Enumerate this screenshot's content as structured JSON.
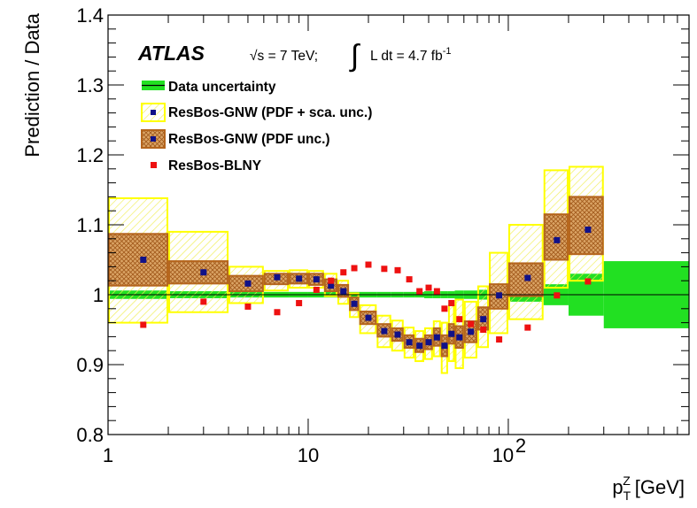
{
  "chart_data": {
    "type": "scatter",
    "experiment_label": "ATLAS",
    "energy_label": "√s = 7 TeV;",
    "lumi_label": "L dt = 4.7 fb",
    "lumi_exponent": "-1",
    "ylabel": "Prediction / Data",
    "xlabel_main": "p",
    "xlabel_sub": "T",
    "xlabel_sup": "Z",
    "xlabel_unit": "[GeV]",
    "xscale": "log",
    "xlim": [
      1,
      800
    ],
    "ylim": [
      0.8,
      1.4
    ],
    "x_tick_labels": [
      {
        "value": 1,
        "label": "1"
      },
      {
        "value": 10,
        "label": "10"
      },
      {
        "value": 100,
        "label": "10",
        "exp": "2"
      }
    ],
    "y_tick_labels": [
      {
        "value": 0.8,
        "label": "0.8"
      },
      {
        "value": 0.9,
        "label": "0.9"
      },
      {
        "value": 1.0,
        "label": "1"
      },
      {
        "value": 1.1,
        "label": "1.1"
      },
      {
        "value": 1.2,
        "label": "1.2"
      },
      {
        "value": 1.3,
        "label": "1.3"
      },
      {
        "value": 1.4,
        "label": "1.4"
      }
    ],
    "reference_line": 1.0,
    "legend_position": "top-left",
    "legend": [
      {
        "key": "data",
        "label": "Data uncertainty"
      },
      {
        "key": "gnw_full",
        "label": "ResBos-GNW (PDF + sca. unc.)"
      },
      {
        "key": "gnw_pdf",
        "label": "ResBos-GNW (PDF unc.)"
      },
      {
        "key": "blny",
        "label": "ResBos-BLNY"
      }
    ],
    "colors": {
      "data_band": "#22e022",
      "gnw_full_edge": "#ffff00",
      "gnw_full_hatch": "#f3f36a",
      "gnw_pdf_edge": "#b5651d",
      "gnw_pdf_fill": "#d9a05b",
      "gnw_marker": "#111188",
      "blny_marker": "#ee1111"
    },
    "bins": [
      {
        "lo": 1,
        "hi": 2,
        "center": 1.5,
        "data_unc": 0.006,
        "gnw": 1.05,
        "gnw_full": [
          0.96,
          1.138
        ],
        "gnw_pdf": [
          1.013,
          1.087
        ],
        "blny": 0.957
      },
      {
        "lo": 2,
        "hi": 4,
        "center": 3,
        "data_unc": 0.005,
        "gnw": 1.032,
        "gnw_full": [
          0.975,
          1.09
        ],
        "gnw_pdf": [
          1.016,
          1.048
        ],
        "blny": 0.99
      },
      {
        "lo": 4,
        "hi": 6,
        "center": 5,
        "data_unc": 0.004,
        "gnw": 1.016,
        "gnw_full": [
          0.988,
          1.04
        ],
        "gnw_pdf": [
          1.005,
          1.027
        ],
        "blny": 0.983
      },
      {
        "lo": 6,
        "hi": 8,
        "center": 7,
        "data_unc": 0.004,
        "gnw": 1.025,
        "gnw_full": [
          1.006,
          1.034
        ],
        "gnw_pdf": [
          1.015,
          1.03
        ],
        "blny": 0.975
      },
      {
        "lo": 8,
        "hi": 10,
        "center": 9,
        "data_unc": 0.004,
        "gnw": 1.023,
        "gnw_full": [
          1.01,
          1.035
        ],
        "gnw_pdf": [
          1.016,
          1.03
        ],
        "blny": 0.988
      },
      {
        "lo": 10,
        "hi": 12,
        "center": 11,
        "data_unc": 0.004,
        "gnw": 1.022,
        "gnw_full": [
          1.01,
          1.034
        ],
        "gnw_pdf": [
          1.014,
          1.03
        ],
        "blny": 1.007
      },
      {
        "lo": 12,
        "hi": 14,
        "center": 13,
        "data_unc": 0.004,
        "gnw": 1.013,
        "gnw_full": [
          0.998,
          1.03
        ],
        "gnw_pdf": [
          1.005,
          1.022
        ],
        "blny": 1.02
      },
      {
        "lo": 14,
        "hi": 16,
        "center": 15,
        "data_unc": 0.004,
        "gnw": 1.005,
        "gnw_full": [
          0.987,
          1.02
        ],
        "gnw_pdf": [
          0.997,
          1.014
        ],
        "blny": 1.032
      },
      {
        "lo": 16,
        "hi": 18,
        "center": 17,
        "data_unc": 0.004,
        "gnw": 0.987,
        "gnw_full": [
          0.968,
          1.002
        ],
        "gnw_pdf": [
          0.978,
          0.996
        ],
        "blny": 1.038
      },
      {
        "lo": 18,
        "hi": 22,
        "center": 20,
        "data_unc": 0.004,
        "gnw": 0.967,
        "gnw_full": [
          0.945,
          0.985
        ],
        "gnw_pdf": [
          0.958,
          0.976
        ],
        "blny": 1.043
      },
      {
        "lo": 22,
        "hi": 26,
        "center": 24,
        "data_unc": 0.004,
        "gnw": 0.948,
        "gnw_full": [
          0.925,
          0.97
        ],
        "gnw_pdf": [
          0.94,
          0.958
        ],
        "blny": 1.037
      },
      {
        "lo": 26,
        "hi": 30,
        "center": 28,
        "data_unc": 0.004,
        "gnw": 0.943,
        "gnw_full": [
          0.92,
          0.963
        ],
        "gnw_pdf": [
          0.934,
          0.952
        ],
        "blny": 1.035
      },
      {
        "lo": 30,
        "hi": 34,
        "center": 32,
        "data_unc": 0.004,
        "gnw": 0.932,
        "gnw_full": [
          0.91,
          0.953
        ],
        "gnw_pdf": [
          0.924,
          0.942
        ],
        "blny": 1.022
      },
      {
        "lo": 34,
        "hi": 38,
        "center": 36,
        "data_unc": 0.004,
        "gnw": 0.927,
        "gnw_full": [
          0.905,
          0.948
        ],
        "gnw_pdf": [
          0.918,
          0.937
        ],
        "blny": 1.005
      },
      {
        "lo": 38,
        "hi": 42,
        "center": 40,
        "data_unc": 0.005,
        "gnw": 0.932,
        "gnw_full": [
          0.908,
          0.952
        ],
        "gnw_pdf": [
          0.922,
          0.942
        ],
        "blny": 1.01
      },
      {
        "lo": 42,
        "hi": 46,
        "center": 44,
        "data_unc": 0.005,
        "gnw": 0.939,
        "gnw_full": [
          0.912,
          0.962
        ],
        "gnw_pdf": [
          0.927,
          0.952
        ],
        "blny": 1.005
      },
      {
        "lo": 46,
        "hi": 50,
        "center": 48,
        "data_unc": 0.005,
        "gnw": 0.927,
        "gnw_full": [
          0.888,
          0.96
        ],
        "gnw_pdf": [
          0.912,
          0.942
        ],
        "blny": 0.98
      },
      {
        "lo": 50,
        "hi": 54,
        "center": 52,
        "data_unc": 0.005,
        "gnw": 0.944,
        "gnw_full": [
          0.905,
          0.985
        ],
        "gnw_pdf": [
          0.93,
          0.958
        ],
        "blny": 0.988
      },
      {
        "lo": 54,
        "hi": 60,
        "center": 57,
        "data_unc": 0.006,
        "gnw": 0.939,
        "gnw_full": [
          0.895,
          0.993
        ],
        "gnw_pdf": [
          0.924,
          0.955
        ],
        "blny": 0.965
      },
      {
        "lo": 60,
        "hi": 70,
        "center": 65,
        "data_unc": 0.006,
        "gnw": 0.947,
        "gnw_full": [
          0.91,
          0.99
        ],
        "gnw_pdf": [
          0.932,
          0.962
        ],
        "blny": 0.958
      },
      {
        "lo": 70,
        "hi": 80,
        "center": 75,
        "data_unc": 0.007,
        "gnw": 0.965,
        "gnw_full": [
          0.925,
          1.012
        ],
        "gnw_pdf": [
          0.95,
          0.982
        ],
        "blny": 0.95
      },
      {
        "lo": 80,
        "hi": 100,
        "center": 90,
        "data_unc": 0.008,
        "gnw": 0.999,
        "gnw_full": [
          0.945,
          1.06
        ],
        "gnw_pdf": [
          0.98,
          1.015
        ],
        "blny": 0.936
      },
      {
        "lo": 100,
        "hi": 150,
        "center": 125,
        "data_unc": 0.01,
        "gnw": 1.024,
        "gnw_full": [
          0.965,
          1.1
        ],
        "gnw_pdf": [
          0.998,
          1.045
        ],
        "blny": 0.953
      },
      {
        "lo": 150,
        "hi": 200,
        "center": 175,
        "data_unc": 0.015,
        "gnw": 1.078,
        "gnw_full": [
          1.01,
          1.178
        ],
        "gnw_pdf": [
          1.05,
          1.115
        ],
        "blny": 0.999
      },
      {
        "lo": 200,
        "hi": 300,
        "center": 250,
        "data_unc": 0.03,
        "gnw": 1.093,
        "gnw_full": [
          1.02,
          1.183
        ],
        "gnw_pdf": [
          1.058,
          1.14
        ],
        "blny": 1.019
      },
      {
        "lo": 300,
        "hi": 800,
        "center": null,
        "data_unc": 0.048,
        "gnw": null,
        "gnw_full": null,
        "gnw_pdf": null,
        "blny": null
      }
    ]
  }
}
